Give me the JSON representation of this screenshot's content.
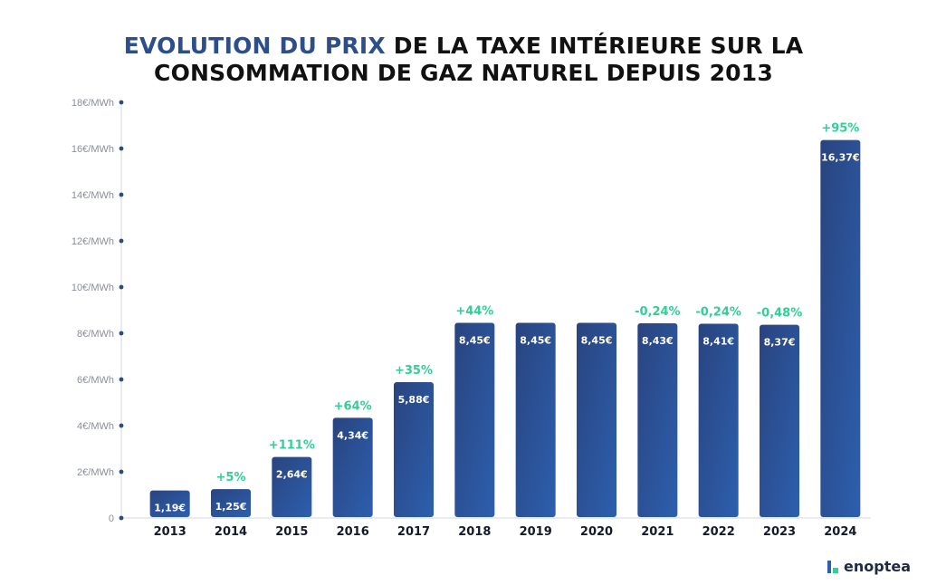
{
  "title": {
    "highlight": "EVOLUTION DU PRIX",
    "line1_rest": " DE LA TAXE INTÉRIEURE SUR LA",
    "line2": "CONSOMMATION DE GAZ NATUREL DEPUIS 2013"
  },
  "chart_data": {
    "type": "bar",
    "title": "EVOLUTION DU PRIX DE LA TAXE INTÉRIEURE SUR LA CONSOMMATION DE GAZ NATUREL DEPUIS 2013",
    "xlabel": "",
    "ylabel": "",
    "ylim": [
      0,
      18
    ],
    "yticks": [
      0,
      2,
      4,
      6,
      8,
      10,
      12,
      14,
      16,
      18
    ],
    "ytick_labels": [
      "0",
      "2€/MWh",
      "4€/MWh",
      "6€/MWh",
      "8€/MWh",
      "10€/MWh",
      "12€/MWh",
      "14€/MWh",
      "16€/MWh",
      "18€/MWh"
    ],
    "grid": false,
    "categories": [
      "2013",
      "2014",
      "2015",
      "2016",
      "2017",
      "2018",
      "2019",
      "2020",
      "2021",
      "2022",
      "2023",
      "2024"
    ],
    "values": [
      1.19,
      1.25,
      2.64,
      4.34,
      5.88,
      8.45,
      8.45,
      8.45,
      8.43,
      8.41,
      8.37,
      16.37
    ],
    "value_labels": [
      "1,19€",
      "1,25€",
      "2,64€",
      "4,34€",
      "5,88€",
      "8,45€",
      "8,45€",
      "8,45€",
      "8,43€",
      "8,41€",
      "8,37€",
      "16,37€"
    ],
    "change_labels": [
      "",
      "+5%",
      "+111%",
      "+64%",
      "+35%",
      "+44%",
      "",
      "",
      "-0,24%",
      "-0,24%",
      "-0,48%",
      "+95%"
    ],
    "colors": {
      "bar_top": "#29447f",
      "bar_bottom": "#2d5fae",
      "change": "#2fcf96",
      "axis": "#2b4a80"
    }
  },
  "logo": {
    "text": "enoptea",
    "icon": "enoptea-logo-icon"
  }
}
